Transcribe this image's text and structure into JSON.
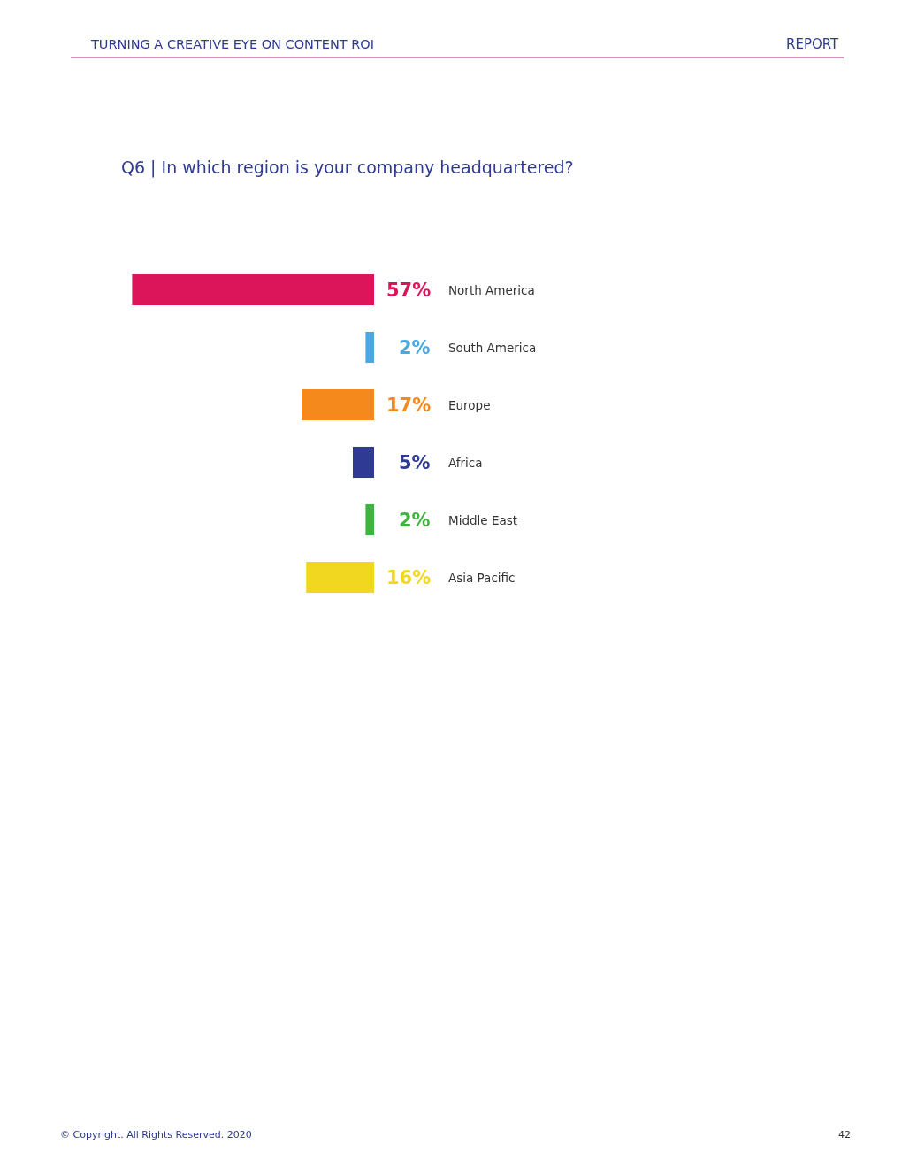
{
  "chart_data": {
    "type": "bar",
    "orientation": "horizontal",
    "title": "Q6 | In which region is your company headquartered?",
    "categories": [
      "North America",
      "South America",
      "Europe",
      "Africa",
      "Middle East",
      "Asia Pacific"
    ],
    "values": [
      57,
      2,
      17,
      5,
      2,
      16
    ],
    "value_labels": [
      "57%",
      "2%",
      "17%",
      "5%",
      "2%",
      "16%"
    ],
    "colors": [
      "#dc1459",
      "#4aa8e0",
      "#f5891b",
      "#2e3a93",
      "#3db53d",
      "#f2d720"
    ],
    "annotations": [
      "TURNING A CREATIVE EYE ON CONTENT ROI",
      "REPORT",
      "© Copyright. All Rights Reserved. 2020",
      "42"
    ],
    "legend": false
  }
}
